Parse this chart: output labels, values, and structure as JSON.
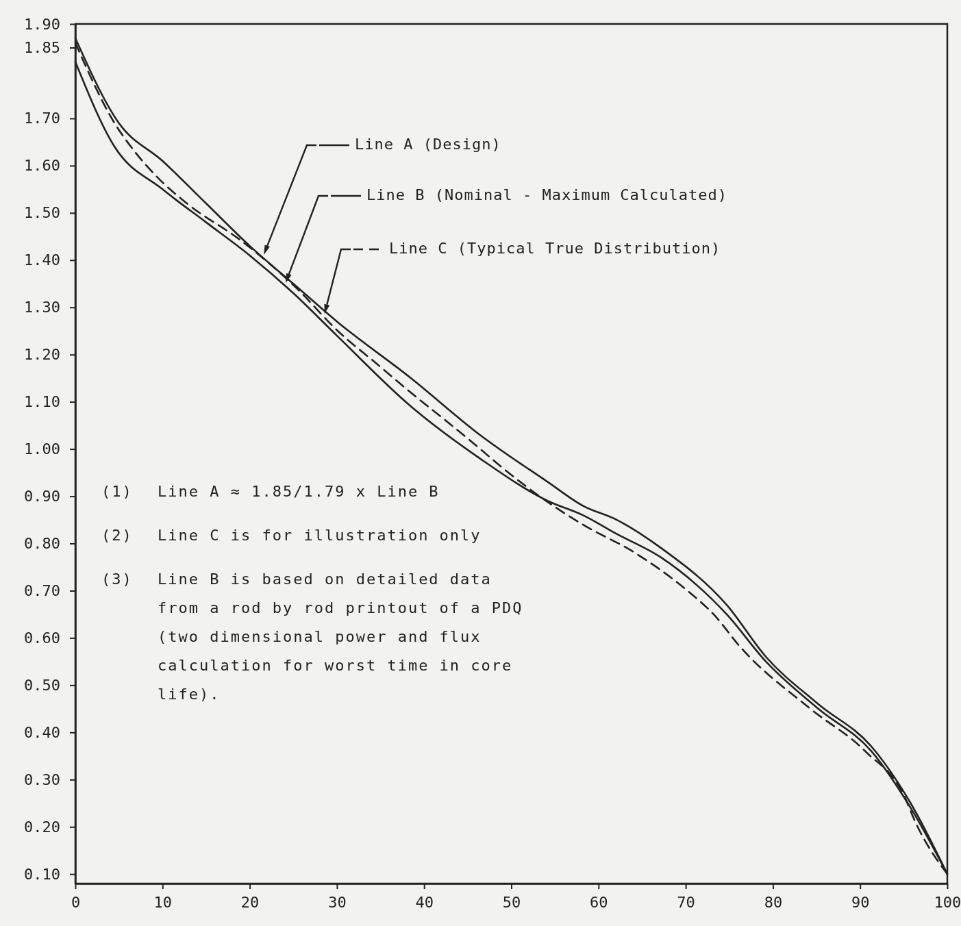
{
  "chart_data": {
    "type": "line",
    "x": [
      0,
      5,
      10,
      15,
      20,
      25,
      30,
      38.5,
      46.4,
      54.2,
      58.2,
      62.1,
      67.2,
      74.7,
      79.2,
      85.2,
      91.3,
      95.8,
      100
    ],
    "series": [
      {
        "name": "Line A (Design)",
        "color": "#222222",
        "line_style": "solid",
        "values": [
          1.87,
          1.69,
          1.61,
          1.52,
          1.43,
          1.35,
          1.27,
          1.15,
          1.03,
          0.93,
          0.88,
          0.85,
          0.79,
          0.67,
          0.56,
          0.46,
          0.37,
          0.25,
          0.1
        ]
      },
      {
        "name": "Line B (Nominal - Maximum Calculated)",
        "color": "#222222",
        "line_style": "solid",
        "x": [
          0,
          4.5,
          10,
          15,
          20,
          25,
          30,
          38.5,
          46.4,
          54.2,
          58.2,
          62.1,
          67.2,
          74.7,
          79.2,
          85.2,
          91.3,
          95.8,
          100
        ],
        "values": [
          1.82,
          1.64,
          1.55,
          1.48,
          1.41,
          1.33,
          1.24,
          1.09,
          0.98,
          0.89,
          0.86,
          0.82,
          0.77,
          0.65,
          0.55,
          0.45,
          0.36,
          0.24,
          0.1
        ]
      },
      {
        "name": "Line C (Typical True Distribution)",
        "color": "#222222",
        "line_style": "dashed",
        "x": [
          0,
          4.5,
          6.8,
          9.7,
          12.8,
          19.1,
          25.4,
          30.1,
          34.6,
          39.1,
          42.5,
          45.8,
          49,
          54,
          58.2,
          64.2,
          70.2,
          73.2,
          76.3,
          84.3,
          90.6,
          95.2,
          96.1,
          100
        ],
        "values": [
          1.86,
          1.69,
          1.63,
          1.57,
          1.52,
          1.44,
          1.34,
          1.25,
          1.18,
          1.11,
          1.06,
          1.01,
          0.96,
          0.89,
          0.84,
          0.78,
          0.7,
          0.65,
          0.58,
          0.45,
          0.36,
          0.26,
          0.22,
          0.1
        ]
      }
    ],
    "xlim": [
      0,
      100
    ],
    "xticks": [
      0,
      10,
      20,
      30,
      40,
      50,
      60,
      70,
      80,
      90,
      100
    ],
    "ylim": [
      0.08,
      1.9
    ],
    "yticks": [
      {
        "value": 1.9,
        "label": "1.90"
      },
      {
        "value": 1.85,
        "label": "1.85"
      },
      {
        "value": 1.7,
        "label": "1.70"
      },
      {
        "value": 1.6,
        "label": "1.60"
      },
      {
        "value": 1.5,
        "label": "1.50"
      },
      {
        "value": 1.4,
        "label": "1.40"
      },
      {
        "value": 1.3,
        "label": "1.30"
      },
      {
        "value": 1.2,
        "label": "1.20"
      },
      {
        "value": 1.1,
        "label": "1.10"
      },
      {
        "value": 1.0,
        "label": "1.00"
      },
      {
        "value": 0.9,
        "label": "0.90"
      },
      {
        "value": 0.8,
        "label": "0.80"
      },
      {
        "value": 0.7,
        "label": "0.70"
      },
      {
        "value": 0.6,
        "label": "0.60"
      },
      {
        "value": 0.5,
        "label": "0.50"
      },
      {
        "value": 0.4,
        "label": "0.40"
      },
      {
        "value": 0.3,
        "label": "0.30"
      },
      {
        "value": 0.2,
        "label": "0.20"
      },
      {
        "value": 0.1,
        "label": "0.10"
      }
    ],
    "grid": false,
    "legend": "top",
    "marker": "none",
    "annotations": [
      "(1)  Line A ≈ 1.85/1.79 x Line B",
      "(2)  Line C is for illustration only",
      "(3)  Line B is based on detailed data from a rod by rod printout of a PDQ (two dimensional power and flux calculation for worst time in core life)."
    ]
  }
}
